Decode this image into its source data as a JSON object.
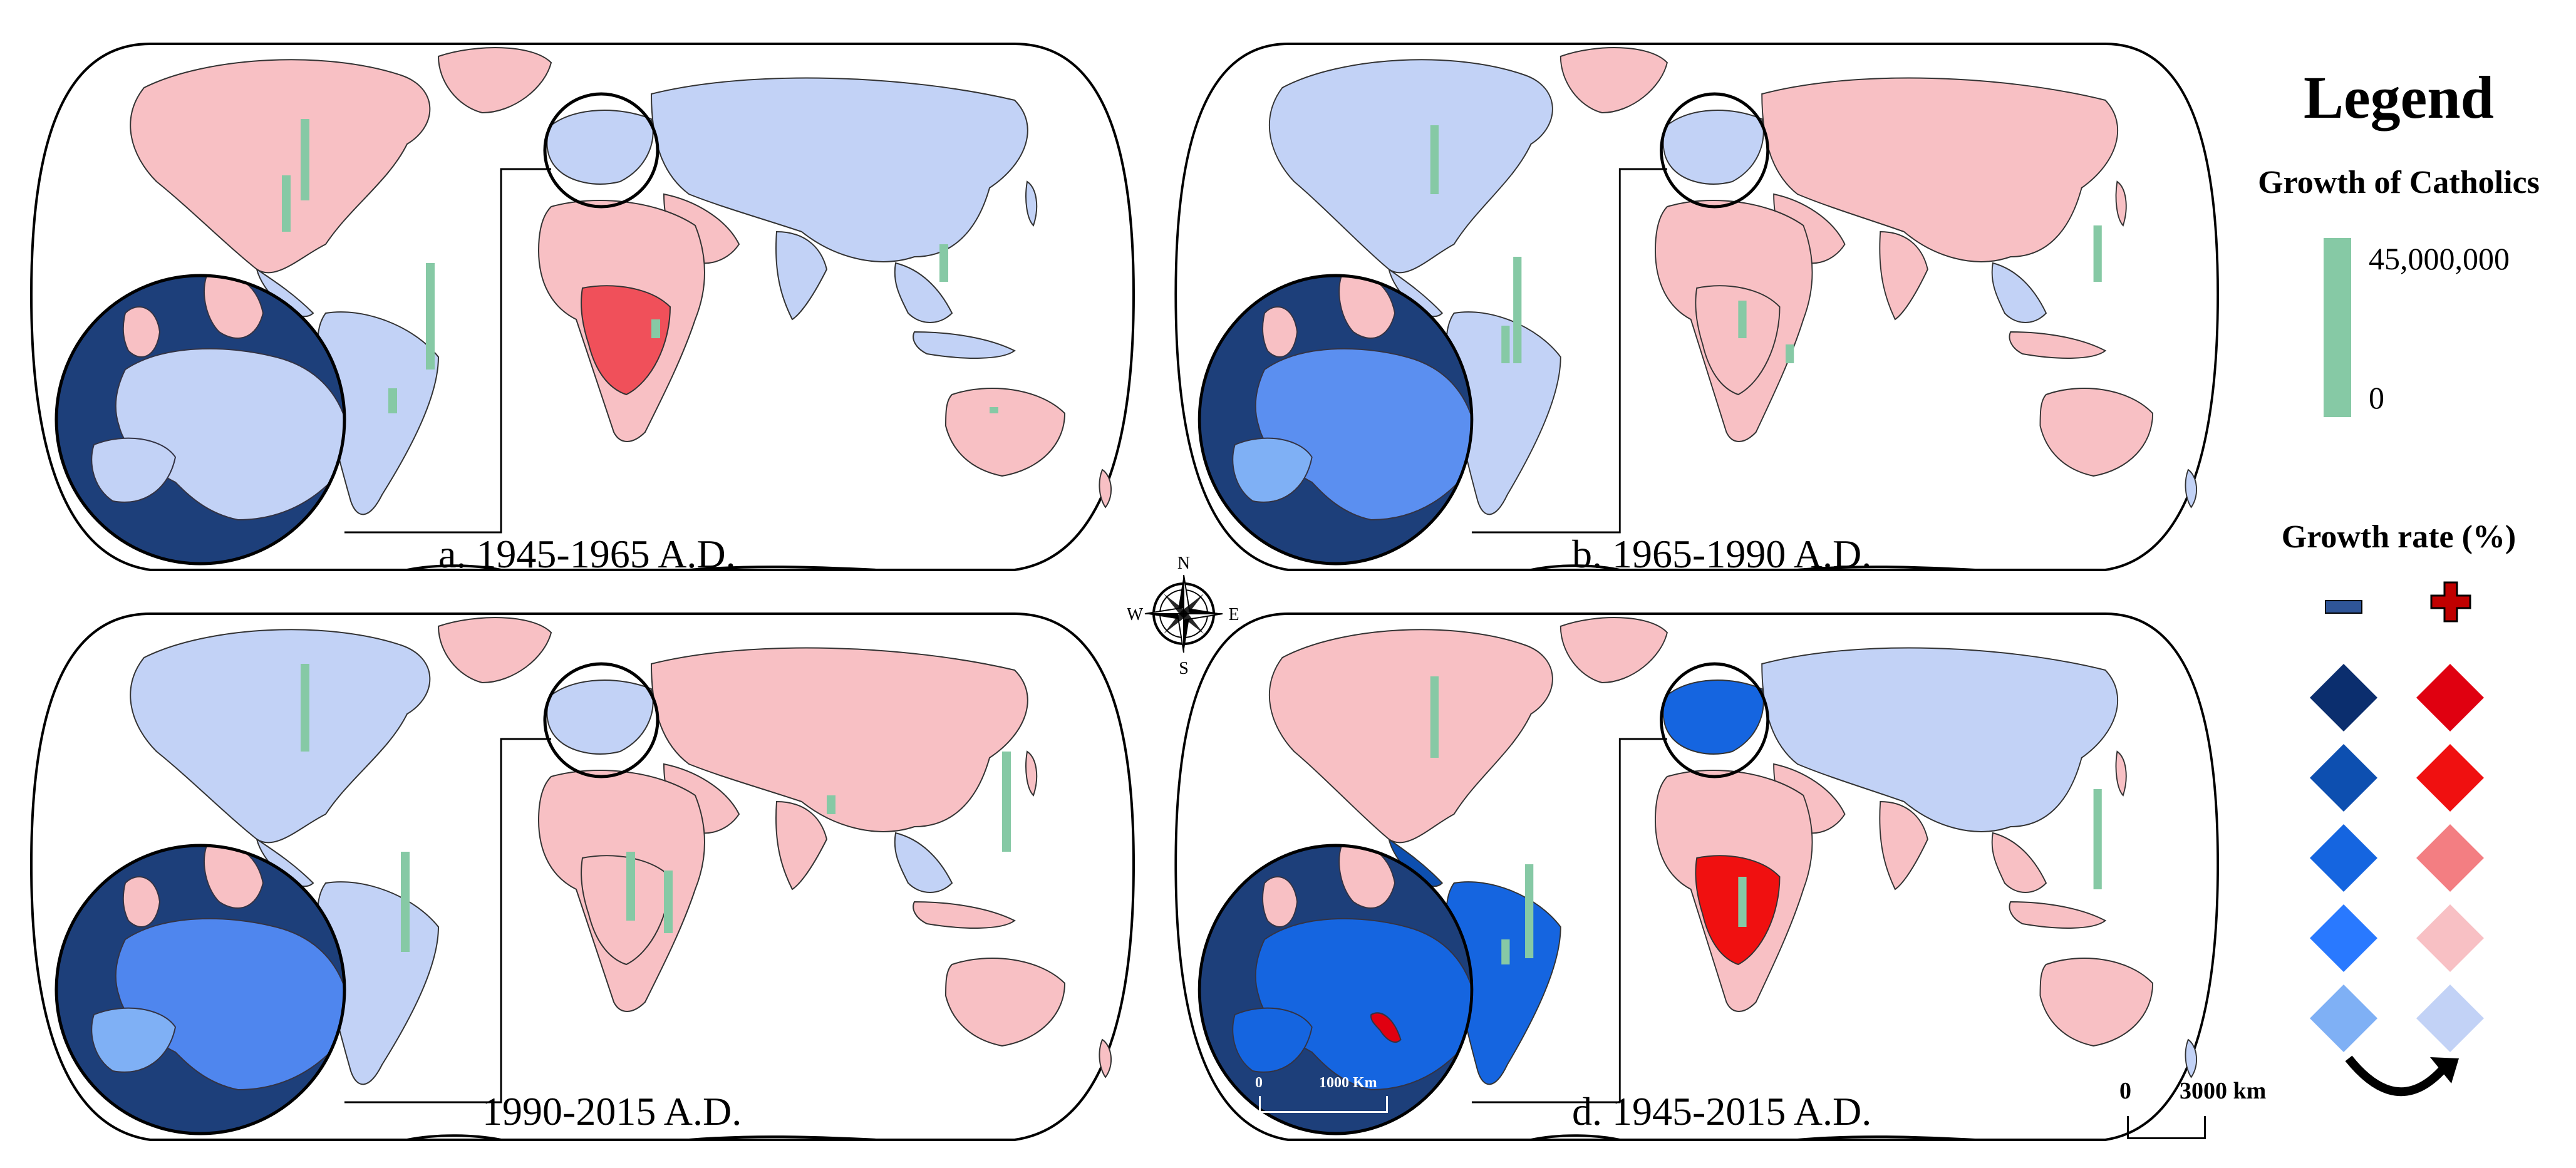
{
  "panels": [
    {
      "id": "a",
      "label": "a. 1945-1965 A.D."
    },
    {
      "id": "b",
      "label": "b. 1965-1990 A.D."
    },
    {
      "id": "c",
      "label": "1990-2015 A.D."
    },
    {
      "id": "d",
      "label": "d. 1945-2015 A.D."
    }
  ],
  "legend": {
    "title": "Legend",
    "growth_catholics": {
      "title": "Growth of Catholics",
      "max_label": "45,000,000",
      "min_label": "0",
      "color": "#86c9a5"
    },
    "growth_rate": {
      "title": "Growth rate (%)",
      "negative_colors": [
        "#0b2e6e",
        "#0d4fb0",
        "#1565e0",
        "#2979ff",
        "#7fb0f5"
      ],
      "positive_colors": [
        "#e00010",
        "#f01010",
        "#f37e82",
        "#f8c0c4",
        "#c2d2f6"
      ],
      "minus_color": "#2f5597",
      "plus_color": "#c00000"
    }
  },
  "compass": {
    "n": "N",
    "s": "S",
    "e": "E",
    "w": "W"
  },
  "scale": {
    "zero": "0",
    "distance": "3000 km"
  },
  "inset_scale_d": {
    "zero": "0",
    "distance": "1000 Km"
  },
  "colors": {
    "pink": "#f8c0c4",
    "lightblue": "#c2d2f6",
    "sea_dark": "#1d3f7a",
    "bar_green": "#86c9a5",
    "red": "#e8121c",
    "blue": "#1565e0"
  }
}
